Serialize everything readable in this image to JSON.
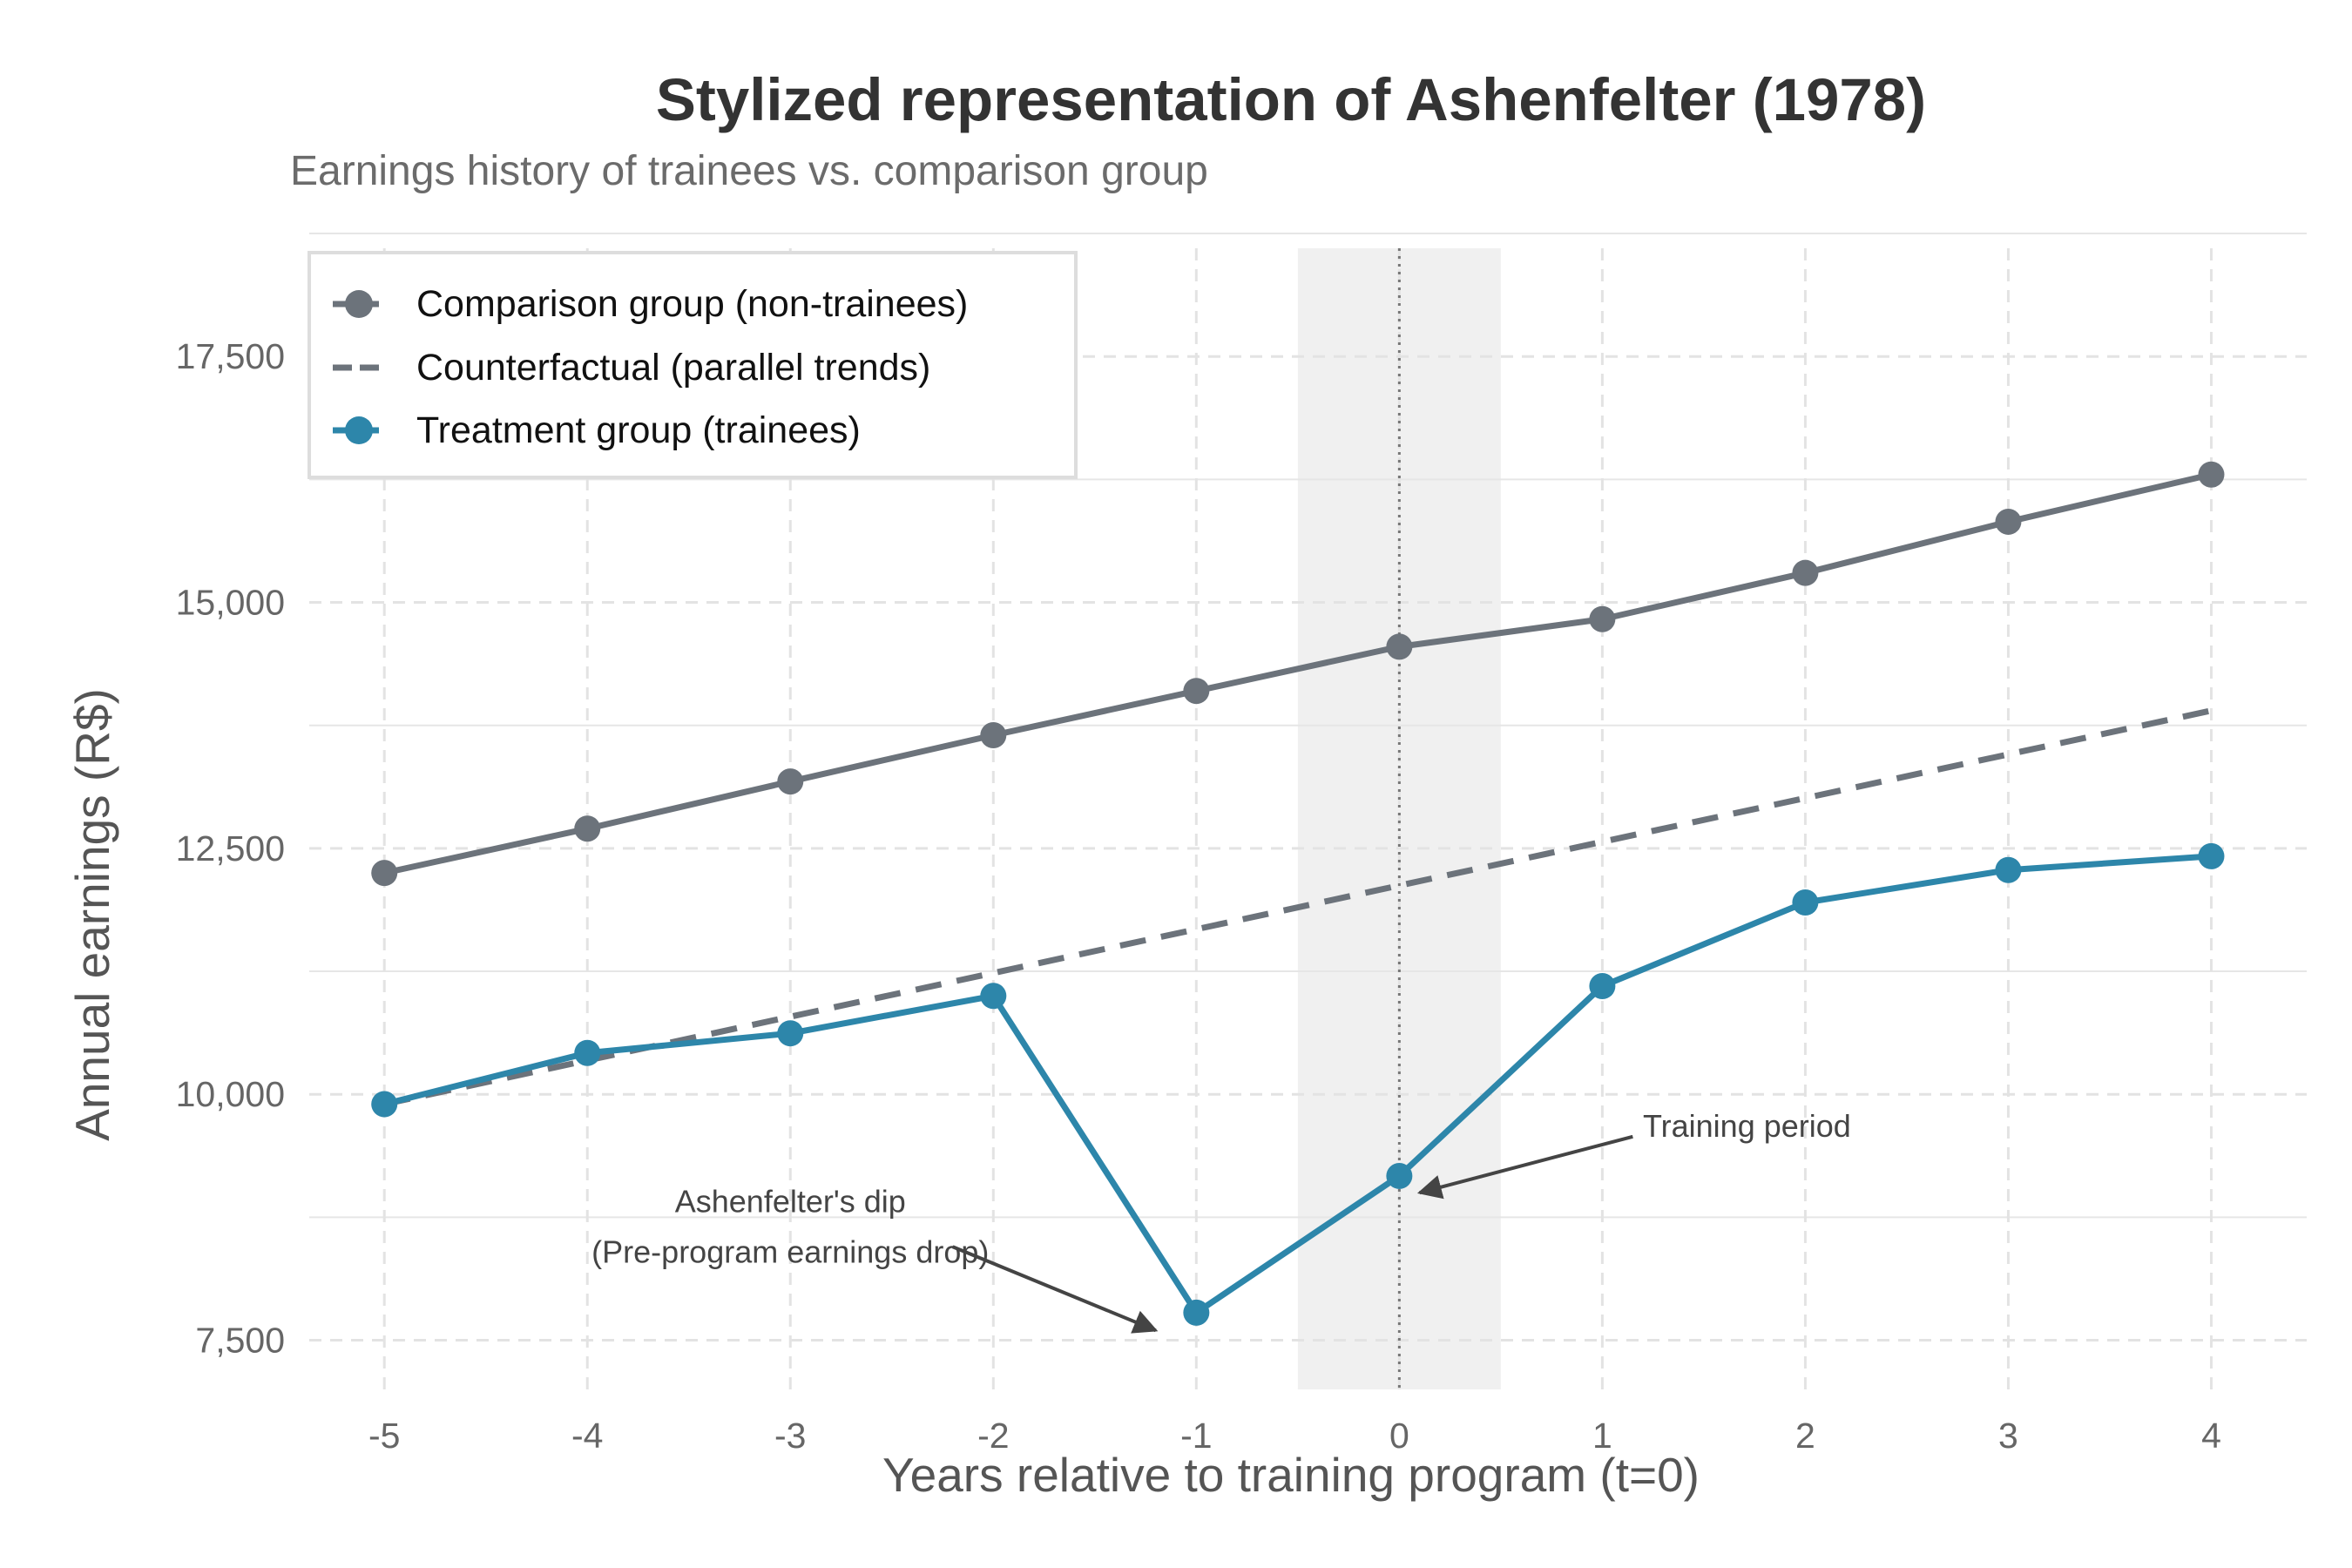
{
  "chart_data": {
    "type": "line",
    "title": "Stylized representation of Ashenfelter (1978)",
    "subtitle": "Earnings history of trainees vs. comparison group",
    "xlabel": "Years relative to training program (t=0)",
    "ylabel": "Annual earnings (R$)",
    "x": [
      -5,
      -4,
      -3,
      -2,
      -1,
      0,
      1,
      2,
      3,
      4
    ],
    "x_tick_labels": [
      "-5",
      "-4",
      "-3",
      "-2",
      "-1",
      "0",
      "1",
      "2",
      "3",
      "4"
    ],
    "xlim": [
      -5.37,
      4.47
    ],
    "ylim": [
      7000,
      18600
    ],
    "y_ticks": [
      7500,
      10000,
      12500,
      15000,
      17500
    ],
    "y_tick_labels": [
      "7,500",
      "10,000",
      "12,500",
      "15,000",
      "17,500"
    ],
    "series": [
      {
        "name": "Comparison group (non-trainees)",
        "style": "solid-markers",
        "color": "#6c737b",
        "values": [
          12250,
          12700,
          13180,
          13650,
          14100,
          14550,
          14830,
          15300,
          15820,
          16300
        ]
      },
      {
        "name": "Counterfactual (parallel trends)",
        "style": "dashed",
        "color": "#6c737b",
        "x": [
          -5,
          4
        ],
        "values": [
          9900,
          13900
        ]
      },
      {
        "name": "Treatment group (trainees)",
        "style": "solid-markers",
        "color": "#2d86aa",
        "values": [
          9900,
          10420,
          10620,
          11000,
          7780,
          9170,
          11100,
          11950,
          12280,
          12420
        ]
      }
    ],
    "shaded_region": {
      "x_from": -0.5,
      "x_to": 0.5,
      "color": "#f0f0f0"
    },
    "vertical_line": {
      "x": 0,
      "style": "dotted",
      "color": "#777777"
    },
    "annotations": [
      {
        "lines": [
          "Ashenfelter's dip",
          "(Pre-program earnings drop)"
        ],
        "text_x": -3.0,
        "text_y": 8800,
        "arrow_from": [
          -2.2,
          8450
        ],
        "arrow_to": [
          -1.2,
          7600
        ]
      },
      {
        "lines": [
          "Training period"
        ],
        "text_x": 1.2,
        "text_y": 9570,
        "arrow_from": [
          1.15,
          9570
        ],
        "arrow_to": [
          0.1,
          9000
        ]
      }
    ],
    "legend_position": "top-left",
    "grid": true
  }
}
